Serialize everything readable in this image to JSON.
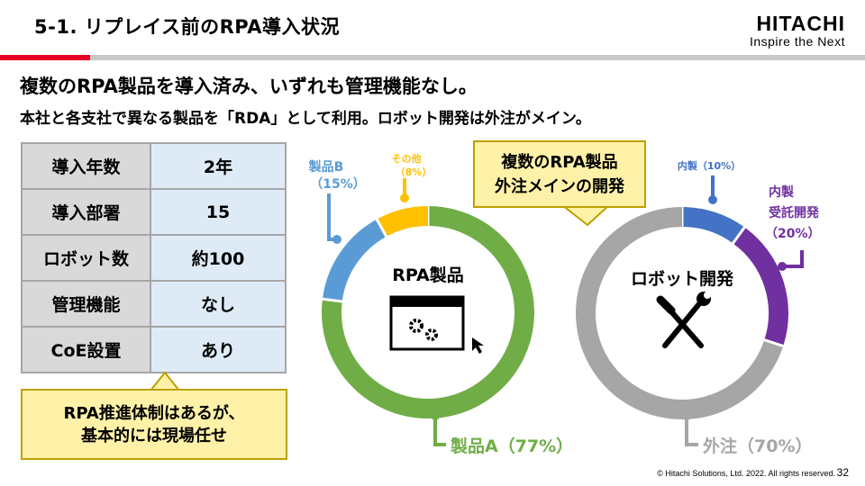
{
  "header": {
    "title": "5-1. リプレイス前のRPA導入状況",
    "logo_brand": "HITACHI",
    "logo_tagline": "Inspire the Next",
    "accent_color": "#e60027"
  },
  "subtitle_1": "複数のRPA製品を導入済み、いずれも管理機能なし。",
  "subtitle_2": "本社と各支社で異なる製品を「RDA」として利用。ロボット開発は外注がメイン。",
  "info_table": {
    "rows": [
      {
        "key": "導入年数",
        "value": "2年"
      },
      {
        "key": "導入部署",
        "value": "15"
      },
      {
        "key": "ロボット数",
        "value": "約100"
      },
      {
        "key": "管理機能",
        "value": "なし"
      },
      {
        "key": "CoE設置",
        "value": "あり"
      }
    ]
  },
  "note": {
    "line1": "RPA推進体制はあるが、",
    "line2": "基本的には現場任せ"
  },
  "callout": {
    "line1": "複数のRPA製品",
    "line2": "外注メインの開発"
  },
  "chart_data": [
    {
      "type": "pie",
      "center_label": "RPA製品",
      "icon": "app-window-gears-icon",
      "slices": [
        {
          "name": "製品A",
          "value": 77,
          "label": "製品A（77%）",
          "color": "#70ad47"
        },
        {
          "name": "製品B",
          "value": 15,
          "label_line1": "製品B",
          "label_line2": "（15%）",
          "color": "#5b9bd5"
        },
        {
          "name": "その他",
          "value": 8,
          "label_line1": "その他",
          "label_line2": "（8%）",
          "color": "#ffc000"
        }
      ]
    },
    {
      "type": "pie",
      "center_label": "ロボット開発",
      "icon": "wrench-screwdriver-icon",
      "slices": [
        {
          "name": "内製",
          "value": 10,
          "label": "内製（10%）",
          "color": "#4472c4"
        },
        {
          "name": "内製受託開発",
          "value": 20,
          "label_line1": "内製",
          "label_line2": "受託開発",
          "label_line3": "（20%）",
          "color": "#7030a0"
        },
        {
          "name": "外注",
          "value": 70,
          "label": "外注（70%）",
          "color": "#a6a6a6"
        }
      ]
    }
  ],
  "footer": {
    "copyright": "© Hitachi Solutions, Ltd. 2022. All rights reserved.",
    "page_number": "32"
  }
}
